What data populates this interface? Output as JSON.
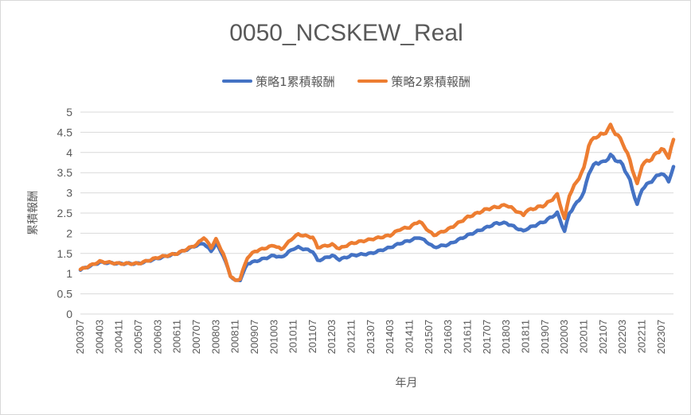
{
  "chart_data": {
    "type": "line",
    "title": "0050_NCSKEW_Real",
    "xlabel": "年月",
    "ylabel": "累積報酬",
    "ylim": [
      0,
      5
    ],
    "y_ticks": [
      "0",
      "0.5",
      "1",
      "1.5",
      "2",
      "2.5",
      "3",
      "3.5",
      "4",
      "4.5",
      "5"
    ],
    "x_tick_labels": [
      "200307",
      "200403",
      "200411",
      "200507",
      "200603",
      "200611",
      "200707",
      "200803",
      "200811",
      "200907",
      "201003",
      "201011",
      "201107",
      "201203",
      "201211",
      "201307",
      "201403",
      "201411",
      "201507",
      "201603",
      "201611",
      "201707",
      "201803",
      "201811",
      "201907",
      "202003",
      "202011",
      "202107",
      "202203",
      "202211",
      "202307"
    ],
    "legend_position": "top",
    "grid": true,
    "series": [
      {
        "name": "策略1累積報酬",
        "color": "#4472c4",
        "points": [
          [
            "200307",
            1.1
          ],
          [
            "200403",
            1.28
          ],
          [
            "200411",
            1.25
          ],
          [
            "200507",
            1.25
          ],
          [
            "200603",
            1.38
          ],
          [
            "200611",
            1.5
          ],
          [
            "200707",
            1.7
          ],
          [
            "200710",
            1.75
          ],
          [
            "200801",
            1.55
          ],
          [
            "200803",
            1.75
          ],
          [
            "200806",
            1.45
          ],
          [
            "200809",
            0.95
          ],
          [
            "200811",
            0.82
          ],
          [
            "200901",
            0.85
          ],
          [
            "200904",
            1.25
          ],
          [
            "200907",
            1.3
          ],
          [
            "201003",
            1.45
          ],
          [
            "201006",
            1.4
          ],
          [
            "201011",
            1.62
          ],
          [
            "201101",
            1.65
          ],
          [
            "201107",
            1.55
          ],
          [
            "201109",
            1.32
          ],
          [
            "201203",
            1.45
          ],
          [
            "201206",
            1.35
          ],
          [
            "201211",
            1.45
          ],
          [
            "201307",
            1.5
          ],
          [
            "201403",
            1.65
          ],
          [
            "201407",
            1.75
          ],
          [
            "201411",
            1.82
          ],
          [
            "201503",
            1.9
          ],
          [
            "201507",
            1.75
          ],
          [
            "201509",
            1.65
          ],
          [
            "201603",
            1.72
          ],
          [
            "201611",
            1.95
          ],
          [
            "201707",
            2.15
          ],
          [
            "201711",
            2.25
          ],
          [
            "201803",
            2.25
          ],
          [
            "201810",
            2.05
          ],
          [
            "201811",
            2.1
          ],
          [
            "201907",
            2.3
          ],
          [
            "201912",
            2.5
          ],
          [
            "202003",
            2.05
          ],
          [
            "202005",
            2.5
          ],
          [
            "202011",
            3.0
          ],
          [
            "202101",
            3.5
          ],
          [
            "202104",
            3.75
          ],
          [
            "202107",
            3.75
          ],
          [
            "202110",
            3.92
          ],
          [
            "202203",
            3.7
          ],
          [
            "202206",
            3.3
          ],
          [
            "202209",
            2.7
          ],
          [
            "202211",
            3.1
          ],
          [
            "202303",
            3.3
          ],
          [
            "202307",
            3.5
          ],
          [
            "202310",
            3.3
          ],
          [
            "202312",
            3.65
          ]
        ]
      },
      {
        "name": "策略2累積報酬",
        "color": "#ed7d31",
        "points": [
          [
            "200307",
            1.1
          ],
          [
            "200403",
            1.3
          ],
          [
            "200411",
            1.25
          ],
          [
            "200507",
            1.25
          ],
          [
            "200603",
            1.4
          ],
          [
            "200611",
            1.5
          ],
          [
            "200707",
            1.72
          ],
          [
            "200710",
            1.9
          ],
          [
            "200801",
            1.65
          ],
          [
            "200803",
            1.85
          ],
          [
            "200806",
            1.5
          ],
          [
            "200809",
            0.95
          ],
          [
            "200811",
            0.82
          ],
          [
            "200901",
            0.88
          ],
          [
            "200904",
            1.4
          ],
          [
            "200907",
            1.55
          ],
          [
            "201003",
            1.7
          ],
          [
            "201006",
            1.6
          ],
          [
            "201011",
            1.9
          ],
          [
            "201101",
            1.97
          ],
          [
            "201107",
            1.9
          ],
          [
            "201109",
            1.65
          ],
          [
            "201203",
            1.72
          ],
          [
            "201206",
            1.62
          ],
          [
            "201211",
            1.75
          ],
          [
            "201307",
            1.85
          ],
          [
            "201403",
            1.95
          ],
          [
            "201407",
            2.1
          ],
          [
            "201411",
            2.15
          ],
          [
            "201503",
            2.3
          ],
          [
            "201507",
            2.05
          ],
          [
            "201509",
            1.95
          ],
          [
            "201603",
            2.1
          ],
          [
            "201611",
            2.4
          ],
          [
            "201707",
            2.6
          ],
          [
            "201711",
            2.65
          ],
          [
            "201803",
            2.7
          ],
          [
            "201810",
            2.45
          ],
          [
            "201811",
            2.55
          ],
          [
            "201907",
            2.7
          ],
          [
            "201912",
            2.95
          ],
          [
            "202003",
            2.35
          ],
          [
            "202005",
            2.95
          ],
          [
            "202011",
            3.6
          ],
          [
            "202101",
            4.2
          ],
          [
            "202104",
            4.4
          ],
          [
            "202107",
            4.45
          ],
          [
            "202110",
            4.65
          ],
          [
            "202203",
            4.25
          ],
          [
            "202206",
            3.8
          ],
          [
            "202209",
            3.2
          ],
          [
            "202211",
            3.7
          ],
          [
            "202303",
            3.85
          ],
          [
            "202307",
            4.1
          ],
          [
            "202310",
            3.9
          ],
          [
            "202312",
            4.32
          ]
        ]
      }
    ]
  }
}
